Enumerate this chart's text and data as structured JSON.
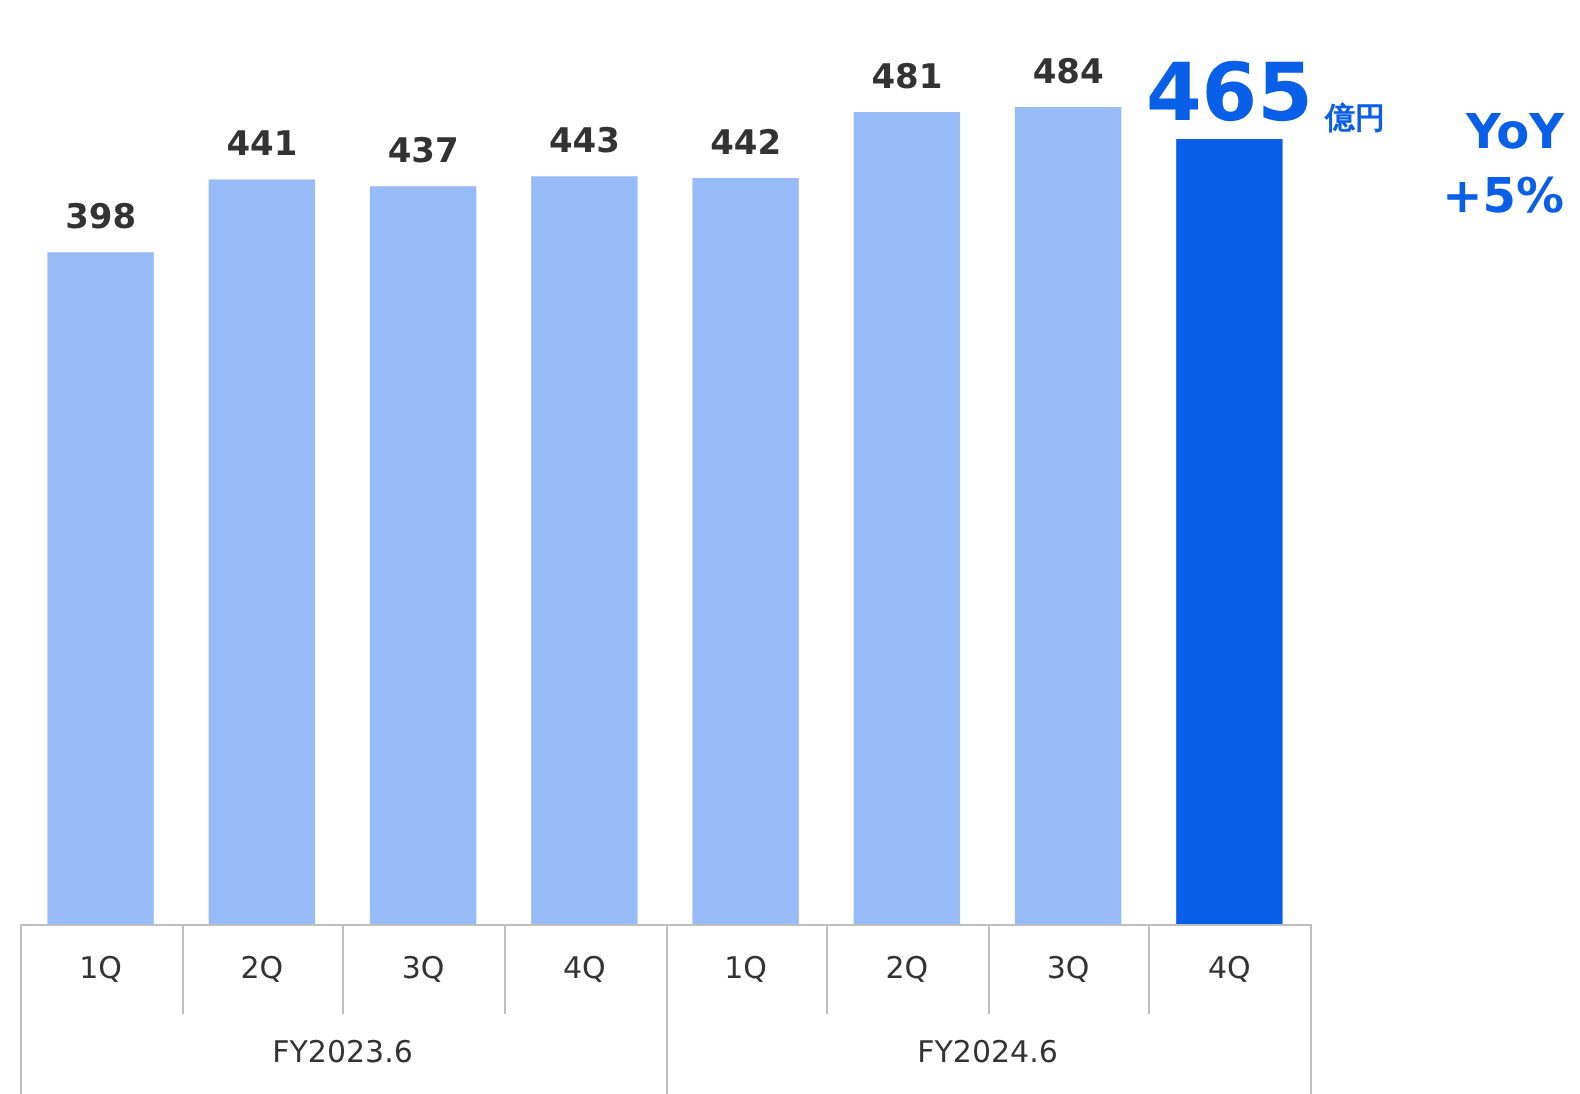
{
  "chart_data": {
    "type": "bar",
    "categories": [
      "1Q",
      "2Q",
      "3Q",
      "4Q",
      "1Q",
      "2Q",
      "3Q",
      "4Q"
    ],
    "values": [
      398,
      441,
      437,
      443,
      442,
      481,
      484,
      465
    ],
    "colors": [
      "#97bbf7",
      "#97bbf7",
      "#97bbf7",
      "#97bbf7",
      "#97bbf7",
      "#97bbf7",
      "#97bbf7",
      "#0a5fe8"
    ],
    "data_labels": true,
    "grid": false,
    "legend": false,
    "tick_labels": "x",
    "annotations": [
      "億円",
      "YoY\n+5%",
      "FY2023.6",
      "FY2024.6"
    ]
  }
}
